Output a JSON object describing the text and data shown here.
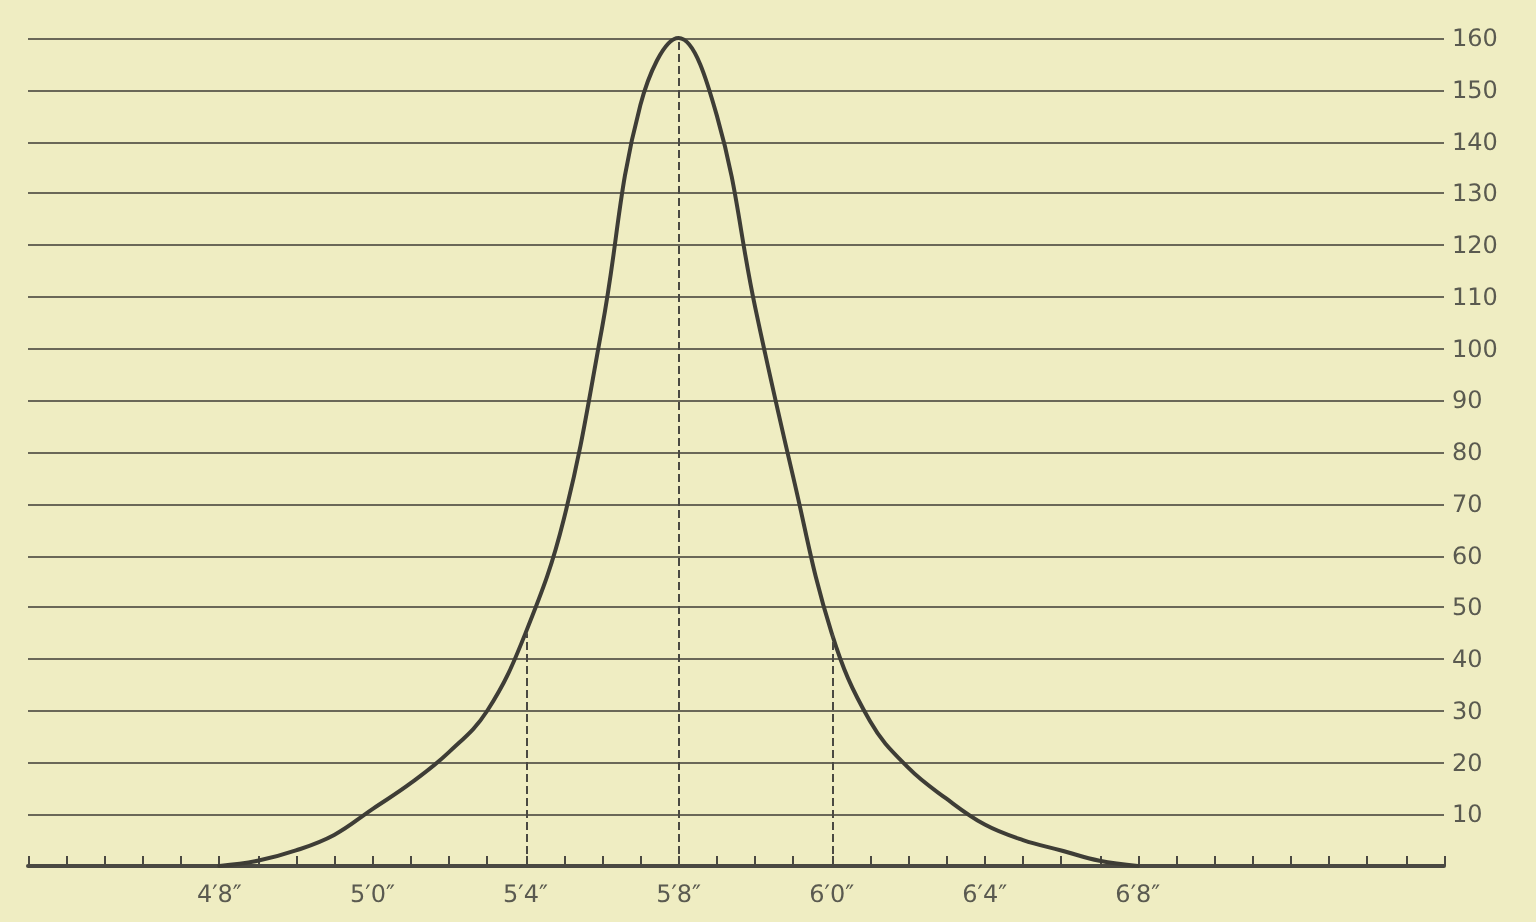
{
  "chart_data": {
    "type": "line",
    "categories": [
      null,
      null,
      null,
      null,
      null,
      "4′8″",
      null,
      null,
      null,
      "5′0″",
      null,
      null,
      null,
      "5′4″",
      null,
      null,
      null,
      "5′8″",
      null,
      null,
      null,
      "6′0″",
      null,
      null,
      null,
      "6′4″",
      null,
      null,
      null,
      "6′8″",
      null,
      null,
      null,
      null,
      null,
      null,
      null,
      null
    ],
    "series": [
      {
        "color": "#3e3d36",
        "values": [
          null,
          null,
          null,
          null,
          null,
          0,
          1,
          3,
          6,
          11,
          16,
          22,
          30,
          45,
          67,
          104,
          147,
          160,
          145,
          108,
          75,
          45,
          28,
          19,
          13,
          8,
          5,
          3,
          1,
          0,
          null,
          null,
          null,
          null,
          null,
          null,
          null,
          null
        ]
      }
    ],
    "ylim": [
      0,
      160
    ],
    "yticks": [
      10,
      20,
      30,
      40,
      50,
      60,
      70,
      80,
      90,
      100,
      110,
      120,
      130,
      140,
      150,
      160
    ],
    "ref_lines": [
      {
        "axis": "x",
        "value": "5′4″",
        "line_style": "dashed"
      },
      {
        "axis": "x",
        "value": "5′8″",
        "line_style": "dashed"
      },
      {
        "axis": "x",
        "value": "6′0″",
        "line_style": "dashed"
      }
    ],
    "grid": "y",
    "marker": "none",
    "line_style": "solid"
  }
}
